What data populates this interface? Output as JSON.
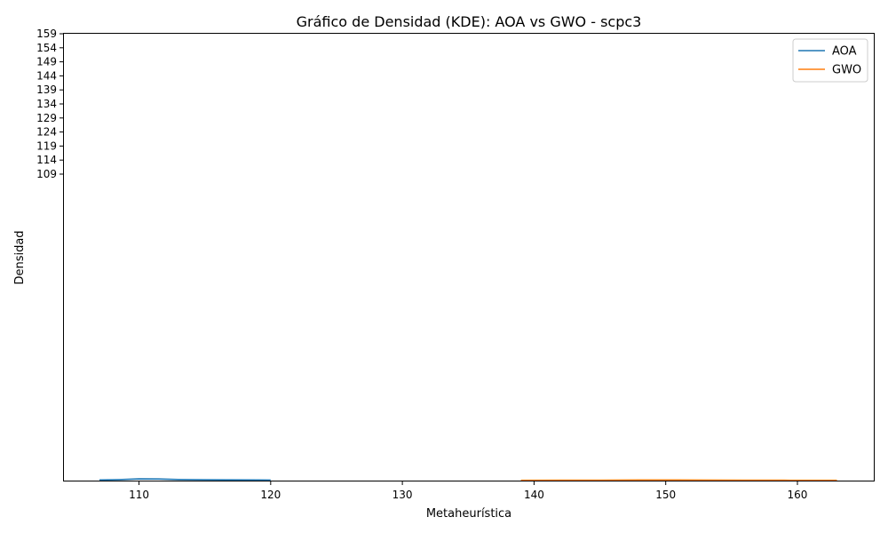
{
  "chart_data": {
    "type": "line",
    "title": "Gráfico de Densidad (KDE): AOA vs GWO - scpc3",
    "xlabel": "Metaheurística",
    "ylabel": "Densidad",
    "xlim": [
      104.3,
      165.8
    ],
    "xticks": [
      110,
      120,
      130,
      140,
      150,
      160
    ],
    "ytick_labels": [
      "109",
      "114",
      "119",
      "124",
      "129",
      "134",
      "139",
      "144",
      "149",
      "154",
      "159"
    ],
    "legend_position": "top-right",
    "grid": false,
    "series": [
      {
        "name": "AOA",
        "color": "#1f77b4",
        "x": [
          107,
          108.5,
          110,
          111.5,
          113,
          115,
          117,
          119,
          120
        ],
        "y": [
          0.3,
          0.5,
          0.85,
          0.8,
          0.55,
          0.4,
          0.38,
          0.32,
          0.28
        ]
      },
      {
        "name": "GWO",
        "color": "#ff7f0e",
        "x": [
          139,
          142,
          145,
          148,
          150,
          153,
          156,
          159,
          161,
          163
        ],
        "y": [
          0.12,
          0.16,
          0.22,
          0.3,
          0.32,
          0.28,
          0.22,
          0.17,
          0.14,
          0.12
        ]
      }
    ]
  }
}
